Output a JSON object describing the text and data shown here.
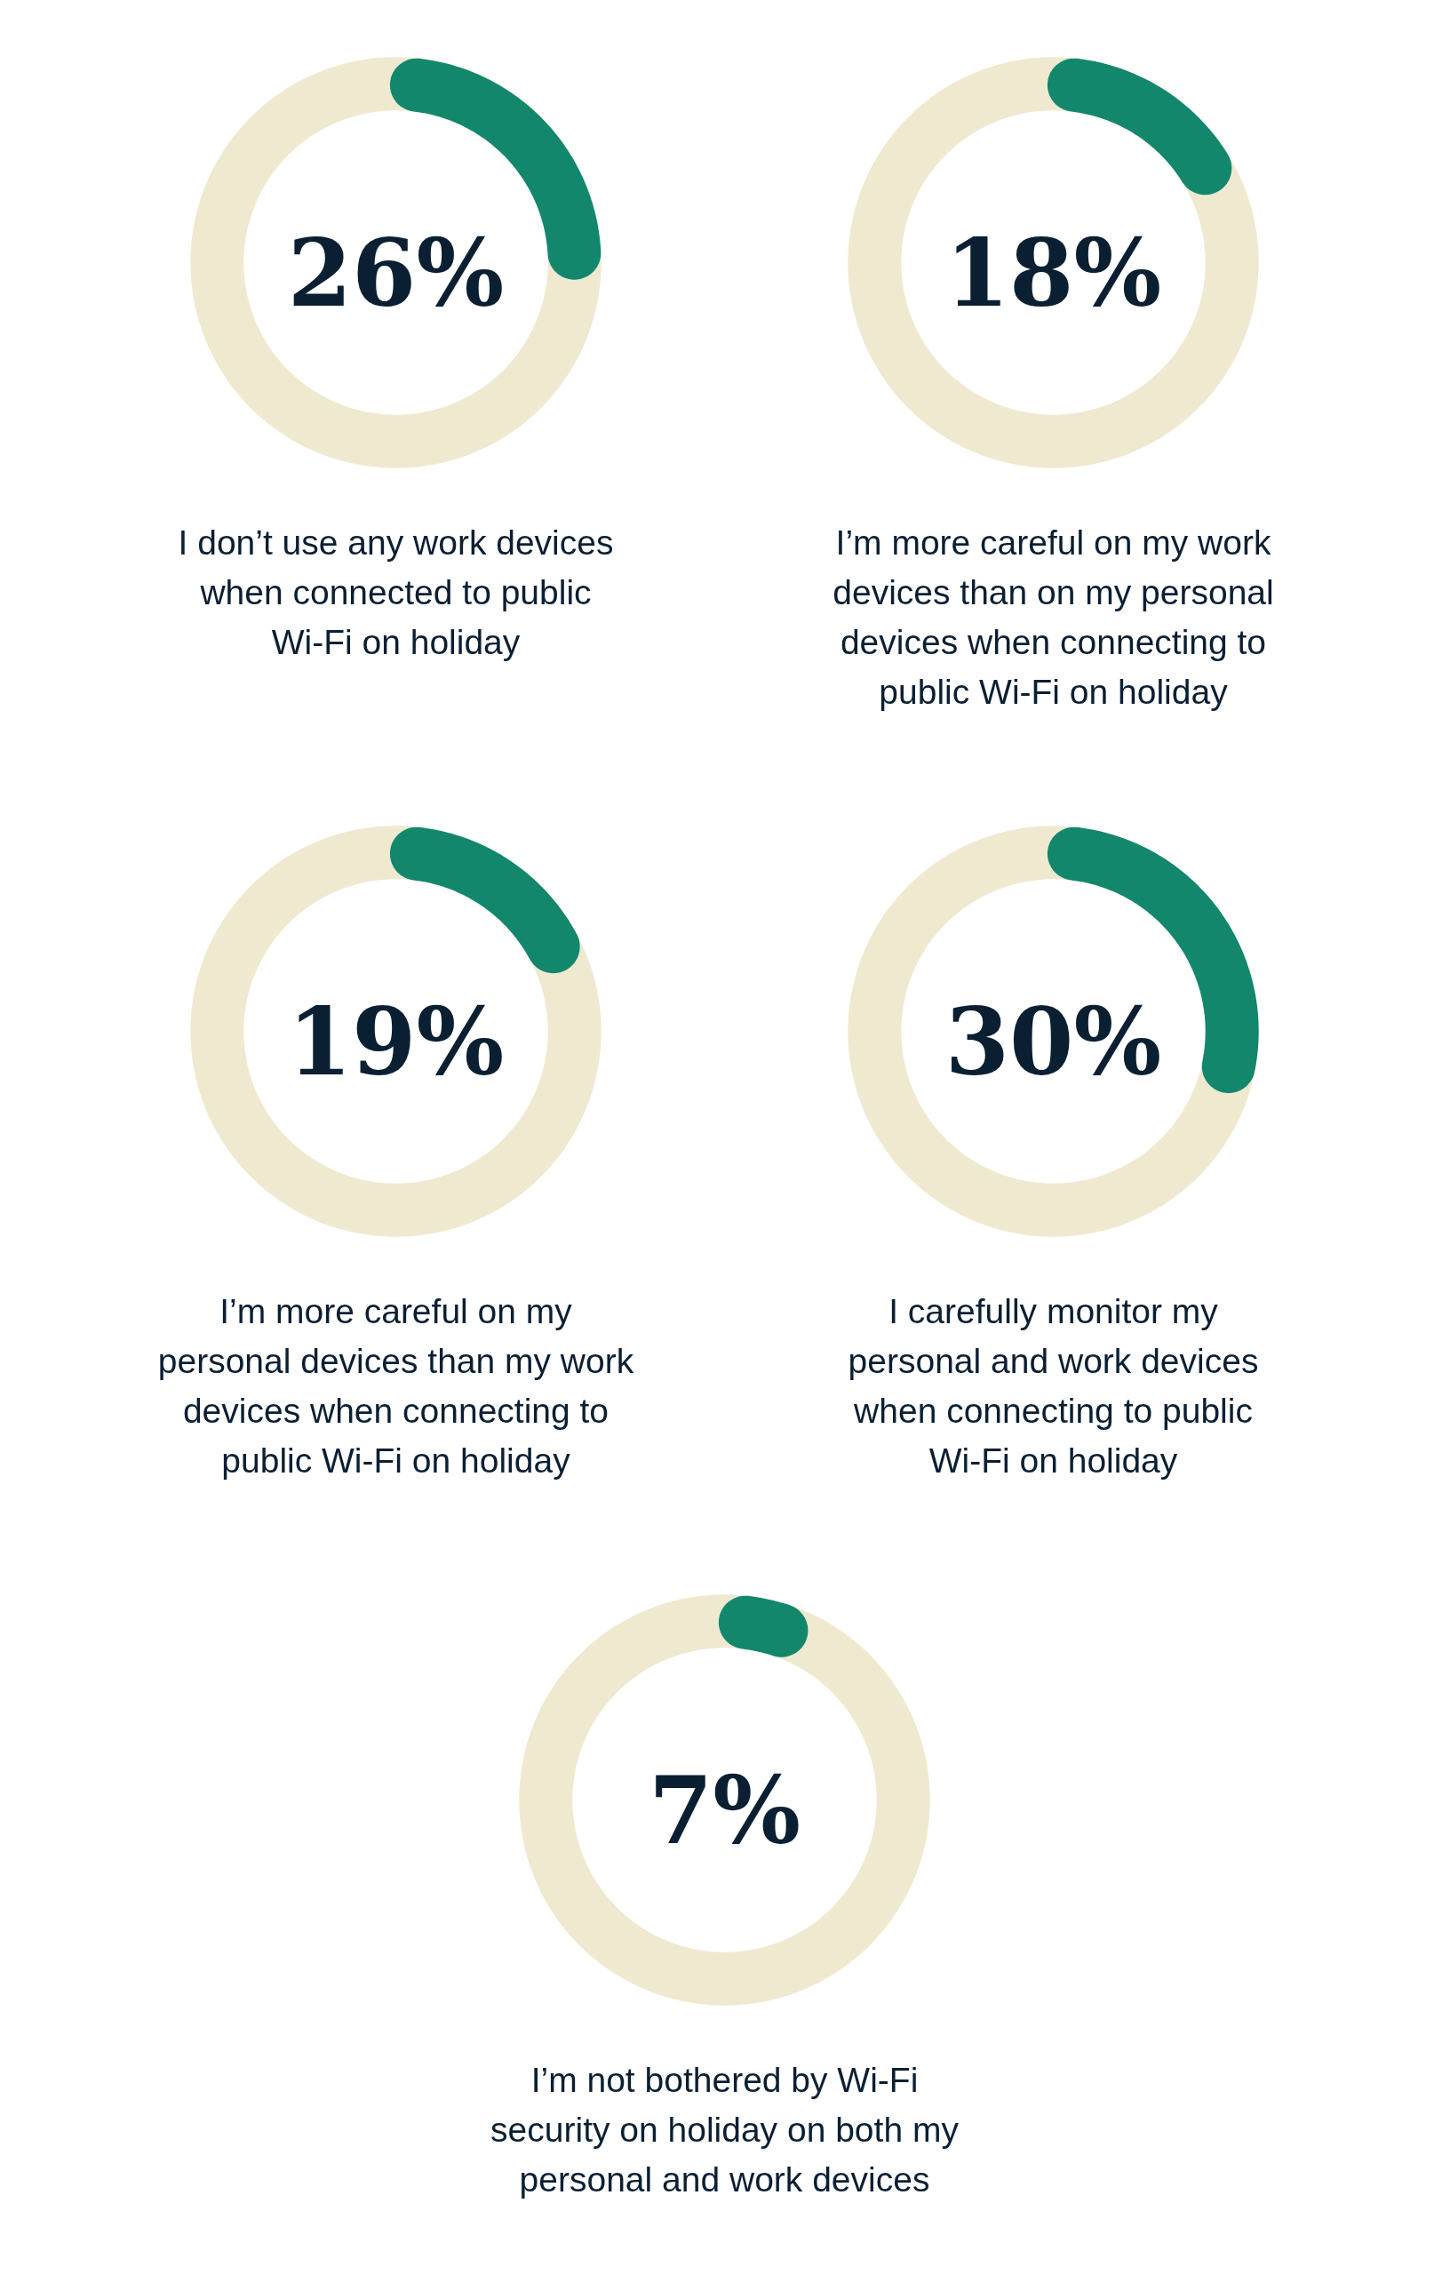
{
  "chart_data": [
    {
      "type": "donut",
      "categories": [
        null,
        null
      ],
      "values": [
        26,
        74
      ],
      "colors": [
        "#12876b",
        "#efe9d0"
      ],
      "annotations": [
        "26%",
        "I don’t use any work devices\nwhen connected to public\nWi-Fi on holiday"
      ]
    },
    {
      "type": "donut",
      "categories": [
        null,
        null
      ],
      "values": [
        18,
        82
      ],
      "colors": [
        "#12876b",
        "#efe9d0"
      ],
      "annotations": [
        "18%",
        "I’m more careful on my work\ndevices than on my personal\ndevices when connecting to\npublic Wi-Fi on holiday"
      ]
    },
    {
      "type": "donut",
      "categories": [
        null,
        null
      ],
      "values": [
        19,
        81
      ],
      "colors": [
        "#12876b",
        "#efe9d0"
      ],
      "annotations": [
        "19%",
        "I’m more careful on my\npersonal devices than my work\ndevices when connecting to\npublic Wi-Fi on holiday"
      ]
    },
    {
      "type": "donut",
      "categories": [
        null,
        null
      ],
      "values": [
        30,
        70
      ],
      "colors": [
        "#12876b",
        "#efe9d0"
      ],
      "annotations": [
        "30%",
        "I carefully monitor my\npersonal and work devices\nwhen connecting to public\nWi-Fi on holiday"
      ]
    },
    {
      "type": "donut",
      "categories": [
        null,
        null
      ],
      "values": [
        7,
        93
      ],
      "colors": [
        "#12876b",
        "#efe9d0"
      ],
      "annotations": [
        "7%",
        "I’m not bothered by Wi-Fi\nsecurity on holiday on both my\npersonal and work devices"
      ]
    }
  ]
}
